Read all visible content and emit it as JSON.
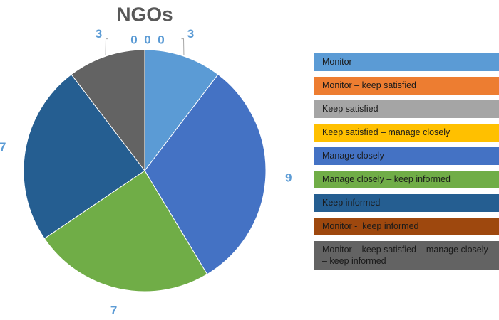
{
  "chart_data": {
    "type": "pie",
    "title": "NGOs",
    "categories": [
      "Monitor",
      "Monitor – keep satisfied",
      "Keep satisfied",
      "Keep satisfied – manage closely",
      "Manage closely",
      "Manage closely – keep informed",
      "Keep informed",
      "Monitor -  keep informed",
      "Monitor – keep satisfied – manage closely – keep informed"
    ],
    "values": [
      3,
      0,
      0,
      0,
      9,
      7,
      7,
      0,
      3
    ],
    "colors": [
      "#5b9bd5",
      "#ed7d31",
      "#a5a5a5",
      "#ffc000",
      "#4472c4",
      "#70ad47",
      "#255e91",
      "#9e480e",
      "#636363"
    ],
    "legend": "right"
  }
}
